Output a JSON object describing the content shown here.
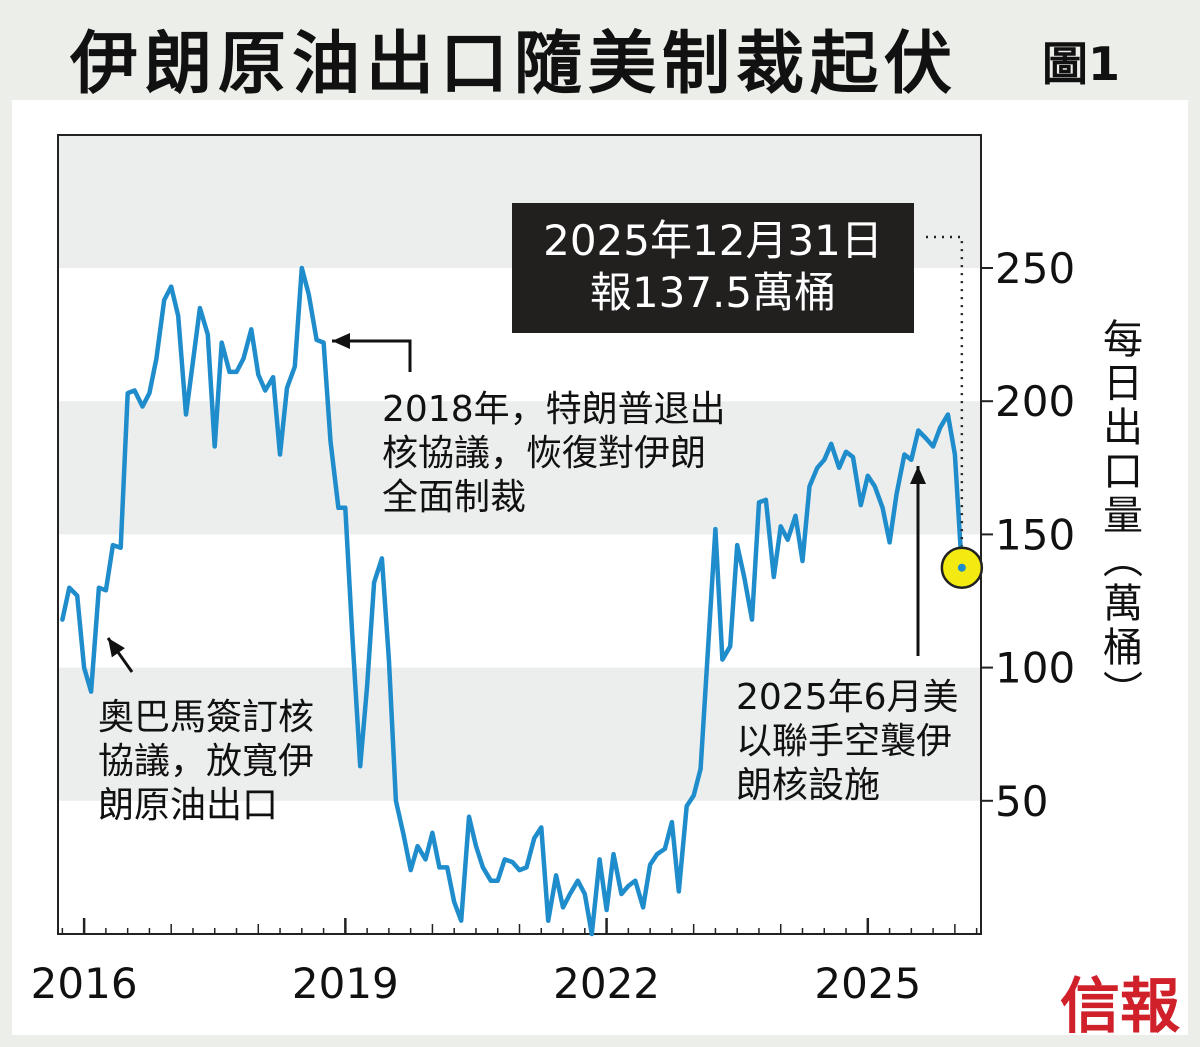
{
  "title": "伊朗原油出口隨美制裁起伏",
  "figure_label": "圖1",
  "ylabel_lines": [
    "每",
    "日",
    "出",
    "口",
    "量",
    "︵",
    "萬",
    "桶",
    "︶"
  ],
  "callout": {
    "line1": "2025年12月31日",
    "line2": "報137.5萬桶"
  },
  "annotations": {
    "obama": [
      "奧巴馬簽訂核",
      "協議，放寬伊",
      "朗原油出口"
    ],
    "trump": [
      "2018年，特朗普退出",
      "核協議，恢復對伊朗",
      "全面制裁"
    ],
    "strike": [
      "2025年6月美",
      "以聯手空襲伊",
      "朗核設施"
    ]
  },
  "logo": "信報",
  "colors": {
    "line": "#1f8ccc",
    "band": "#eceeed",
    "marker": "#f2ea10",
    "logo": "#d0202a",
    "callout_bg": "#221f1f"
  },
  "chart_data": {
    "type": "line",
    "title": "伊朗原油出口隨美制裁起伏",
    "ylabel": "每日出口量(萬桶)",
    "ylim": [
      0,
      250
    ],
    "yticks": [
      50,
      100,
      150,
      200,
      250
    ],
    "xlim": [
      2015.7,
      2026.3
    ],
    "xticks": [
      2016,
      2019,
      2022,
      2025
    ],
    "xtick_labels": [
      "2016",
      "2019",
      "2022",
      "2025"
    ],
    "grid": "horizontal bands",
    "series": [
      {
        "values": [
          [
            2015.75,
            118
          ],
          [
            2015.83,
            130
          ],
          [
            2015.92,
            127
          ],
          [
            2016.0,
            100
          ],
          [
            2016.08,
            91
          ],
          [
            2016.17,
            130
          ],
          [
            2016.25,
            129
          ],
          [
            2016.33,
            146
          ],
          [
            2016.42,
            145
          ],
          [
            2016.5,
            203
          ],
          [
            2016.58,
            204
          ],
          [
            2016.67,
            198
          ],
          [
            2016.75,
            203
          ],
          [
            2016.83,
            216
          ],
          [
            2016.92,
            238
          ],
          [
            2017.0,
            243
          ],
          [
            2017.08,
            232
          ],
          [
            2017.17,
            195
          ],
          [
            2017.25,
            215
          ],
          [
            2017.33,
            235
          ],
          [
            2017.42,
            225
          ],
          [
            2017.5,
            183
          ],
          [
            2017.58,
            222
          ],
          [
            2017.67,
            211
          ],
          [
            2017.75,
            211
          ],
          [
            2017.83,
            216
          ],
          [
            2017.92,
            227
          ],
          [
            2018.0,
            210
          ],
          [
            2018.08,
            204
          ],
          [
            2018.17,
            209
          ],
          [
            2018.25,
            180
          ],
          [
            2018.33,
            205
          ],
          [
            2018.42,
            213
          ],
          [
            2018.5,
            250
          ],
          [
            2018.58,
            240
          ],
          [
            2018.67,
            223
          ],
          [
            2018.75,
            222
          ],
          [
            2018.83,
            185
          ],
          [
            2018.92,
            160
          ],
          [
            2019.0,
            160
          ],
          [
            2019.08,
            112
          ],
          [
            2019.17,
            63
          ],
          [
            2019.25,
            93
          ],
          [
            2019.33,
            132
          ],
          [
            2019.42,
            141
          ],
          [
            2019.5,
            103
          ],
          [
            2019.58,
            50
          ],
          [
            2019.67,
            37
          ],
          [
            2019.75,
            24
          ],
          [
            2019.83,
            33
          ],
          [
            2019.92,
            28
          ],
          [
            2020.0,
            38
          ],
          [
            2020.08,
            25
          ],
          [
            2020.17,
            25
          ],
          [
            2020.25,
            12
          ],
          [
            2020.33,
            5
          ],
          [
            2020.42,
            44
          ],
          [
            2020.5,
            33
          ],
          [
            2020.58,
            25
          ],
          [
            2020.67,
            20
          ],
          [
            2020.75,
            20
          ],
          [
            2020.83,
            28
          ],
          [
            2020.92,
            27
          ],
          [
            2021.0,
            24
          ],
          [
            2021.08,
            25
          ],
          [
            2021.17,
            36
          ],
          [
            2021.25,
            40
          ],
          [
            2021.33,
            5
          ],
          [
            2021.42,
            22
          ],
          [
            2021.5,
            10
          ],
          [
            2021.58,
            15
          ],
          [
            2021.67,
            20
          ],
          [
            2021.75,
            15
          ],
          [
            2021.83,
            0
          ],
          [
            2021.92,
            28
          ],
          [
            2022.0,
            9
          ],
          [
            2022.08,
            30
          ],
          [
            2022.17,
            15
          ],
          [
            2022.25,
            18
          ],
          [
            2022.33,
            20
          ],
          [
            2022.42,
            10
          ],
          [
            2022.5,
            26
          ],
          [
            2022.58,
            30
          ],
          [
            2022.67,
            32
          ],
          [
            2022.75,
            42
          ],
          [
            2022.83,
            16
          ],
          [
            2022.92,
            48
          ],
          [
            2023.0,
            52
          ],
          [
            2023.08,
            62
          ],
          [
            2023.17,
            110
          ],
          [
            2023.25,
            152
          ],
          [
            2023.33,
            103
          ],
          [
            2023.42,
            108
          ],
          [
            2023.5,
            146
          ],
          [
            2023.58,
            134
          ],
          [
            2023.67,
            118
          ],
          [
            2023.75,
            162
          ],
          [
            2023.83,
            163
          ],
          [
            2023.92,
            134
          ],
          [
            2024.0,
            153
          ],
          [
            2024.08,
            148
          ],
          [
            2024.17,
            157
          ],
          [
            2024.25,
            140
          ],
          [
            2024.33,
            168
          ],
          [
            2024.42,
            175
          ],
          [
            2024.5,
            178
          ],
          [
            2024.58,
            184
          ],
          [
            2024.67,
            175
          ],
          [
            2024.75,
            181
          ],
          [
            2024.83,
            179
          ],
          [
            2024.92,
            161
          ],
          [
            2025.0,
            172
          ],
          [
            2025.08,
            168
          ],
          [
            2025.17,
            160
          ],
          [
            2025.25,
            147
          ],
          [
            2025.33,
            165
          ],
          [
            2025.42,
            180
          ],
          [
            2025.5,
            178
          ],
          [
            2025.58,
            189
          ],
          [
            2025.67,
            186
          ],
          [
            2025.75,
            183
          ],
          [
            2025.83,
            190
          ],
          [
            2025.92,
            195
          ],
          [
            2026.0,
            180
          ],
          [
            2026.08,
            137.5
          ]
        ]
      }
    ],
    "highlight_point": {
      "x": 2026.08,
      "y": 137.5
    }
  }
}
